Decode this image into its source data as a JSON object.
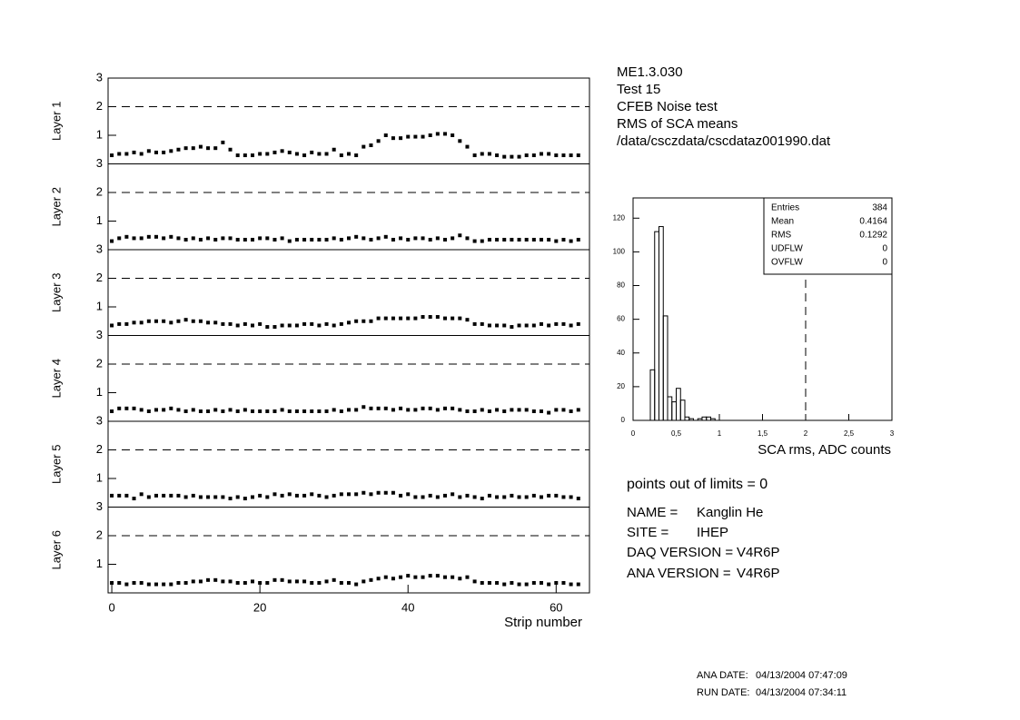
{
  "header": {
    "lines": [
      "ME1.3.030",
      "Test 15",
      "CFEB Noise test",
      "RMS of SCA means",
      "/data/csczdata/cscdataz001990.dat"
    ]
  },
  "chart_data": [
    {
      "type": "scatter",
      "ylabel": "Layer 1",
      "color": "#000000",
      "xlim": [
        -0.5,
        64.5
      ],
      "ylim": [
        0,
        3
      ],
      "yticks": [
        1,
        2,
        3
      ],
      "limit": 2,
      "x": [
        0,
        1,
        2,
        3,
        4,
        5,
        6,
        7,
        8,
        9,
        10,
        11,
        12,
        13,
        14,
        15,
        16,
        17,
        18,
        19,
        20,
        21,
        22,
        23,
        24,
        25,
        26,
        27,
        28,
        29,
        30,
        31,
        32,
        33,
        34,
        35,
        36,
        37,
        38,
        39,
        40,
        41,
        42,
        43,
        44,
        45,
        46,
        47,
        48,
        49,
        50,
        51,
        52,
        53,
        54,
        55,
        56,
        57,
        58,
        59,
        60,
        61,
        62,
        63
      ],
      "values": [
        0.3,
        0.35,
        0.35,
        0.4,
        0.35,
        0.45,
        0.4,
        0.4,
        0.45,
        0.5,
        0.55,
        0.55,
        0.6,
        0.55,
        0.55,
        0.75,
        0.5,
        0.3,
        0.3,
        0.3,
        0.35,
        0.35,
        0.4,
        0.45,
        0.4,
        0.35,
        0.3,
        0.4,
        0.35,
        0.35,
        0.5,
        0.3,
        0.35,
        0.3,
        0.6,
        0.65,
        0.8,
        1.0,
        0.9,
        0.9,
        0.95,
        0.95,
        0.95,
        1.0,
        1.05,
        1.05,
        1.0,
        0.8,
        0.6,
        0.3,
        0.35,
        0.35,
        0.3,
        0.25,
        0.25,
        0.25,
        0.3,
        0.3,
        0.35,
        0.35,
        0.3,
        0.3,
        0.3,
        0.3
      ]
    },
    {
      "type": "scatter",
      "ylabel": "Layer 2",
      "color": "#000000",
      "xlim": [
        -0.5,
        64.5
      ],
      "ylim": [
        0,
        3
      ],
      "yticks": [
        1,
        2,
        3
      ],
      "limit": 2,
      "x": [
        0,
        1,
        2,
        3,
        4,
        5,
        6,
        7,
        8,
        9,
        10,
        11,
        12,
        13,
        14,
        15,
        16,
        17,
        18,
        19,
        20,
        21,
        22,
        23,
        24,
        25,
        26,
        27,
        28,
        29,
        30,
        31,
        32,
        33,
        34,
        35,
        36,
        37,
        38,
        39,
        40,
        41,
        42,
        43,
        44,
        45,
        46,
        47,
        48,
        49,
        50,
        51,
        52,
        53,
        54,
        55,
        56,
        57,
        58,
        59,
        60,
        61,
        62,
        63
      ],
      "values": [
        0.3,
        0.4,
        0.45,
        0.4,
        0.4,
        0.45,
        0.45,
        0.4,
        0.45,
        0.4,
        0.35,
        0.4,
        0.35,
        0.4,
        0.35,
        0.4,
        0.4,
        0.35,
        0.35,
        0.35,
        0.4,
        0.4,
        0.35,
        0.4,
        0.3,
        0.35,
        0.35,
        0.35,
        0.35,
        0.35,
        0.4,
        0.35,
        0.4,
        0.45,
        0.4,
        0.35,
        0.4,
        0.45,
        0.35,
        0.4,
        0.35,
        0.4,
        0.4,
        0.35,
        0.4,
        0.35,
        0.4,
        0.5,
        0.4,
        0.3,
        0.3,
        0.35,
        0.35,
        0.35,
        0.35,
        0.35,
        0.35,
        0.35,
        0.35,
        0.35,
        0.3,
        0.35,
        0.3,
        0.35
      ]
    },
    {
      "type": "scatter",
      "ylabel": "Layer 3",
      "color": "#000000",
      "xlim": [
        -0.5,
        64.5
      ],
      "ylim": [
        0,
        3
      ],
      "yticks": [
        1,
        2,
        3
      ],
      "limit": 2,
      "x": [
        0,
        1,
        2,
        3,
        4,
        5,
        6,
        7,
        8,
        9,
        10,
        11,
        12,
        13,
        14,
        15,
        16,
        17,
        18,
        19,
        20,
        21,
        22,
        23,
        24,
        25,
        26,
        27,
        28,
        29,
        30,
        31,
        32,
        33,
        34,
        35,
        36,
        37,
        38,
        39,
        40,
        41,
        42,
        43,
        44,
        45,
        46,
        47,
        48,
        49,
        50,
        51,
        52,
        53,
        54,
        55,
        56,
        57,
        58,
        59,
        60,
        61,
        62,
        63
      ],
      "values": [
        0.35,
        0.4,
        0.4,
        0.45,
        0.45,
        0.5,
        0.5,
        0.5,
        0.45,
        0.5,
        0.55,
        0.5,
        0.5,
        0.45,
        0.45,
        0.4,
        0.4,
        0.35,
        0.4,
        0.35,
        0.4,
        0.3,
        0.3,
        0.35,
        0.35,
        0.35,
        0.4,
        0.4,
        0.35,
        0.4,
        0.35,
        0.4,
        0.45,
        0.5,
        0.5,
        0.5,
        0.6,
        0.6,
        0.6,
        0.6,
        0.6,
        0.6,
        0.65,
        0.65,
        0.65,
        0.6,
        0.6,
        0.6,
        0.55,
        0.4,
        0.4,
        0.35,
        0.35,
        0.35,
        0.3,
        0.35,
        0.35,
        0.35,
        0.4,
        0.35,
        0.4,
        0.4,
        0.35,
        0.4
      ]
    },
    {
      "type": "scatter",
      "ylabel": "Layer 4",
      "color": "#000000",
      "xlim": [
        -0.5,
        64.5
      ],
      "ylim": [
        0,
        3
      ],
      "yticks": [
        1,
        2,
        3
      ],
      "limit": 2,
      "x": [
        0,
        1,
        2,
        3,
        4,
        5,
        6,
        7,
        8,
        9,
        10,
        11,
        12,
        13,
        14,
        15,
        16,
        17,
        18,
        19,
        20,
        21,
        22,
        23,
        24,
        25,
        26,
        27,
        28,
        29,
        30,
        31,
        32,
        33,
        34,
        35,
        36,
        37,
        38,
        39,
        40,
        41,
        42,
        43,
        44,
        45,
        46,
        47,
        48,
        49,
        50,
        51,
        52,
        53,
        54,
        55,
        56,
        57,
        58,
        59,
        60,
        61,
        62,
        63
      ],
      "values": [
        0.35,
        0.45,
        0.45,
        0.45,
        0.4,
        0.35,
        0.4,
        0.4,
        0.45,
        0.4,
        0.35,
        0.4,
        0.35,
        0.35,
        0.4,
        0.35,
        0.4,
        0.35,
        0.4,
        0.35,
        0.35,
        0.35,
        0.35,
        0.4,
        0.35,
        0.35,
        0.35,
        0.35,
        0.35,
        0.35,
        0.4,
        0.35,
        0.4,
        0.4,
        0.5,
        0.45,
        0.45,
        0.45,
        0.4,
        0.45,
        0.4,
        0.4,
        0.45,
        0.45,
        0.4,
        0.45,
        0.45,
        0.4,
        0.35,
        0.35,
        0.4,
        0.35,
        0.4,
        0.35,
        0.4,
        0.4,
        0.4,
        0.35,
        0.35,
        0.3,
        0.4,
        0.4,
        0.35,
        0.4
      ]
    },
    {
      "type": "scatter",
      "ylabel": "Layer 5",
      "color": "#000000",
      "xlim": [
        -0.5,
        64.5
      ],
      "ylim": [
        0,
        3
      ],
      "yticks": [
        1,
        2,
        3
      ],
      "limit": 2,
      "x": [
        0,
        1,
        2,
        3,
        4,
        5,
        6,
        7,
        8,
        9,
        10,
        11,
        12,
        13,
        14,
        15,
        16,
        17,
        18,
        19,
        20,
        21,
        22,
        23,
        24,
        25,
        26,
        27,
        28,
        29,
        30,
        31,
        32,
        33,
        34,
        35,
        36,
        37,
        38,
        39,
        40,
        41,
        42,
        43,
        44,
        45,
        46,
        47,
        48,
        49,
        50,
        51,
        52,
        53,
        54,
        55,
        56,
        57,
        58,
        59,
        60,
        61,
        62,
        63
      ],
      "values": [
        0.4,
        0.4,
        0.4,
        0.3,
        0.45,
        0.35,
        0.4,
        0.4,
        0.4,
        0.4,
        0.35,
        0.4,
        0.35,
        0.35,
        0.35,
        0.35,
        0.3,
        0.35,
        0.3,
        0.35,
        0.4,
        0.35,
        0.45,
        0.4,
        0.45,
        0.4,
        0.4,
        0.45,
        0.4,
        0.35,
        0.4,
        0.45,
        0.45,
        0.45,
        0.5,
        0.45,
        0.5,
        0.5,
        0.5,
        0.4,
        0.45,
        0.35,
        0.35,
        0.4,
        0.35,
        0.4,
        0.45,
        0.35,
        0.4,
        0.35,
        0.3,
        0.4,
        0.35,
        0.35,
        0.4,
        0.35,
        0.35,
        0.4,
        0.35,
        0.4,
        0.4,
        0.35,
        0.35,
        0.3
      ]
    },
    {
      "type": "scatter",
      "ylabel": "Layer 6",
      "color": "#000000",
      "xlim": [
        -0.5,
        64.5
      ],
      "ylim": [
        0,
        3
      ],
      "yticks": [
        1,
        2,
        3
      ],
      "limit": 2,
      "xticks": [
        0,
        20,
        40,
        60
      ],
      "xlabel": "Strip number",
      "x": [
        0,
        1,
        2,
        3,
        4,
        5,
        6,
        7,
        8,
        9,
        10,
        11,
        12,
        13,
        14,
        15,
        16,
        17,
        18,
        19,
        20,
        21,
        22,
        23,
        24,
        25,
        26,
        27,
        28,
        29,
        30,
        31,
        32,
        33,
        34,
        35,
        36,
        37,
        38,
        39,
        40,
        41,
        42,
        43,
        44,
        45,
        46,
        47,
        48,
        49,
        50,
        51,
        52,
        53,
        54,
        55,
        56,
        57,
        58,
        59,
        60,
        61,
        62,
        63
      ],
      "values": [
        0.35,
        0.35,
        0.3,
        0.35,
        0.35,
        0.3,
        0.3,
        0.3,
        0.3,
        0.35,
        0.35,
        0.4,
        0.4,
        0.45,
        0.45,
        0.4,
        0.4,
        0.35,
        0.35,
        0.4,
        0.35,
        0.35,
        0.45,
        0.45,
        0.4,
        0.4,
        0.4,
        0.35,
        0.35,
        0.4,
        0.45,
        0.35,
        0.35,
        0.3,
        0.4,
        0.45,
        0.5,
        0.55,
        0.5,
        0.55,
        0.6,
        0.55,
        0.55,
        0.6,
        0.6,
        0.55,
        0.55,
        0.5,
        0.55,
        0.4,
        0.35,
        0.35,
        0.35,
        0.3,
        0.35,
        0.3,
        0.3,
        0.35,
        0.35,
        0.3,
        0.35,
        0.35,
        0.3,
        0.3
      ]
    },
    {
      "type": "histogram",
      "xlabel": "SCA rms, ADC counts",
      "color": "#000000",
      "xlim": [
        0,
        3
      ],
      "ylim": [
        0,
        132
      ],
      "limit": 2,
      "xticks": [
        0,
        {
          "value": 0.5,
          "label": "0,5"
        },
        1,
        {
          "value": 1.5,
          "label": "1,5"
        },
        2,
        {
          "value": 2.5,
          "label": "2,5"
        },
        3
      ],
      "yticks": [
        0,
        20,
        40,
        60,
        80,
        100,
        120
      ],
      "bins": [
        0,
        0.05,
        0.1,
        0.15,
        0.2,
        0.25,
        0.3,
        0.35,
        0.4,
        0.45,
        0.5,
        0.55,
        0.6,
        0.65,
        0.7,
        0.75,
        0.8,
        0.85,
        0.9,
        0.95,
        1,
        1.05,
        1.1,
        1.15,
        1.2,
        1.25,
        1.3,
        1.35,
        1.4,
        1.45,
        1.5,
        1.55,
        1.6,
        1.65,
        1.7,
        1.75,
        1.8,
        1.85,
        1.9,
        1.95,
        2,
        2.05,
        2.1,
        2.15,
        2.2,
        2.25,
        2.3,
        2.35,
        2.4,
        2.45,
        2.5,
        2.55,
        2.6,
        2.65,
        2.7,
        2.75,
        2.8,
        2.85,
        2.9,
        2.95,
        3
      ],
      "values": [
        0,
        0,
        0,
        0,
        30,
        112,
        115,
        62,
        14,
        11,
        19,
        12,
        2,
        1,
        0,
        1,
        2,
        2,
        1,
        0,
        0,
        0,
        0,
        0,
        0,
        0,
        0,
        0,
        0,
        0,
        0,
        0,
        0,
        0,
        0,
        0,
        0,
        0,
        0,
        0,
        0,
        0,
        0,
        0,
        0,
        0,
        0,
        0,
        0,
        0,
        0,
        0,
        0,
        0,
        0,
        0,
        0,
        0,
        0,
        0
      ],
      "stats": [
        {
          "label": "Entries",
          "value": 384
        },
        {
          "label": "Mean",
          "value": 0.4164
        },
        {
          "label": "RMS",
          "value": 0.1292
        },
        {
          "label": "UDFLW",
          "value": 0
        },
        {
          "label": "OVFLW",
          "value": 0
        }
      ]
    }
  ],
  "summary": "points out of limits = 0",
  "info": [
    {
      "label": "NAME =",
      "value": "Kanglin He"
    },
    {
      "label": "SITE =",
      "value": "IHEP"
    },
    {
      "label": "DAQ VERSION =",
      "value": "V4R6P"
    },
    {
      "label": "ANA VERSION =",
      "value": "V4R6P"
    }
  ],
  "dates": [
    {
      "label": "ANA DATE:",
      "value": "04/13/2004 07:47:09"
    },
    {
      "label": "RUN DATE:",
      "value": "04/13/2004 07:34:11"
    }
  ]
}
